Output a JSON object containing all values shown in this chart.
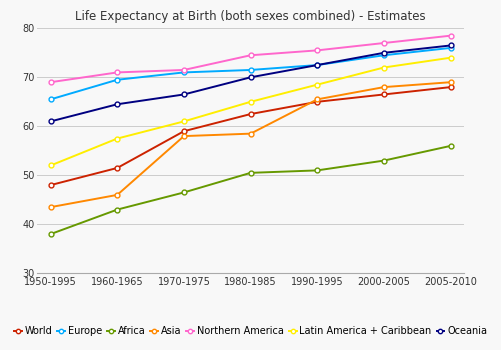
{
  "title": "Life Expectancy at Birth (both sexes combined) - Estimates",
  "x_labels": [
    "1950-1995",
    "1960-1965",
    "1970-1975",
    "1980-1985",
    "1990-1995",
    "2000-2005",
    "2005-2010"
  ],
  "x_values": [
    0,
    1,
    2,
    3,
    4,
    5,
    6
  ],
  "ylim": [
    30,
    80
  ],
  "yticks": [
    30,
    40,
    50,
    60,
    70,
    80
  ],
  "series": [
    {
      "label": "World",
      "color": "#cc2200",
      "values": [
        48,
        51.5,
        59,
        62.5,
        65,
        66.5,
        68
      ]
    },
    {
      "label": "Europe",
      "color": "#00aaff",
      "values": [
        65.5,
        69.5,
        71,
        71.5,
        72.5,
        74.5,
        76
      ]
    },
    {
      "label": "Africa",
      "color": "#669900",
      "values": [
        38,
        43,
        46.5,
        50.5,
        51,
        53,
        56
      ]
    },
    {
      "label": "Asia",
      "color": "#ff8800",
      "values": [
        43.5,
        46,
        58,
        58.5,
        65.5,
        68,
        69
      ]
    },
    {
      "label": "Northern America",
      "color": "#ff66cc",
      "values": [
        69,
        71,
        71.5,
        74.5,
        75.5,
        77,
        78.5
      ]
    },
    {
      "label": "Latin America + Caribbean",
      "color": "#ffee00",
      "values": [
        52,
        57.5,
        61,
        65,
        68.5,
        72,
        74
      ]
    },
    {
      "label": "Oceania",
      "color": "#000080",
      "values": [
        61,
        64.5,
        66.5,
        70,
        72.5,
        75,
        76.5
      ]
    }
  ],
  "background_color": "#f8f8f8",
  "plot_bg_color": "#f8f8f8",
  "grid_color": "#cccccc",
  "legend_fontsize": 7,
  "title_fontsize": 8.5,
  "tick_fontsize": 7
}
